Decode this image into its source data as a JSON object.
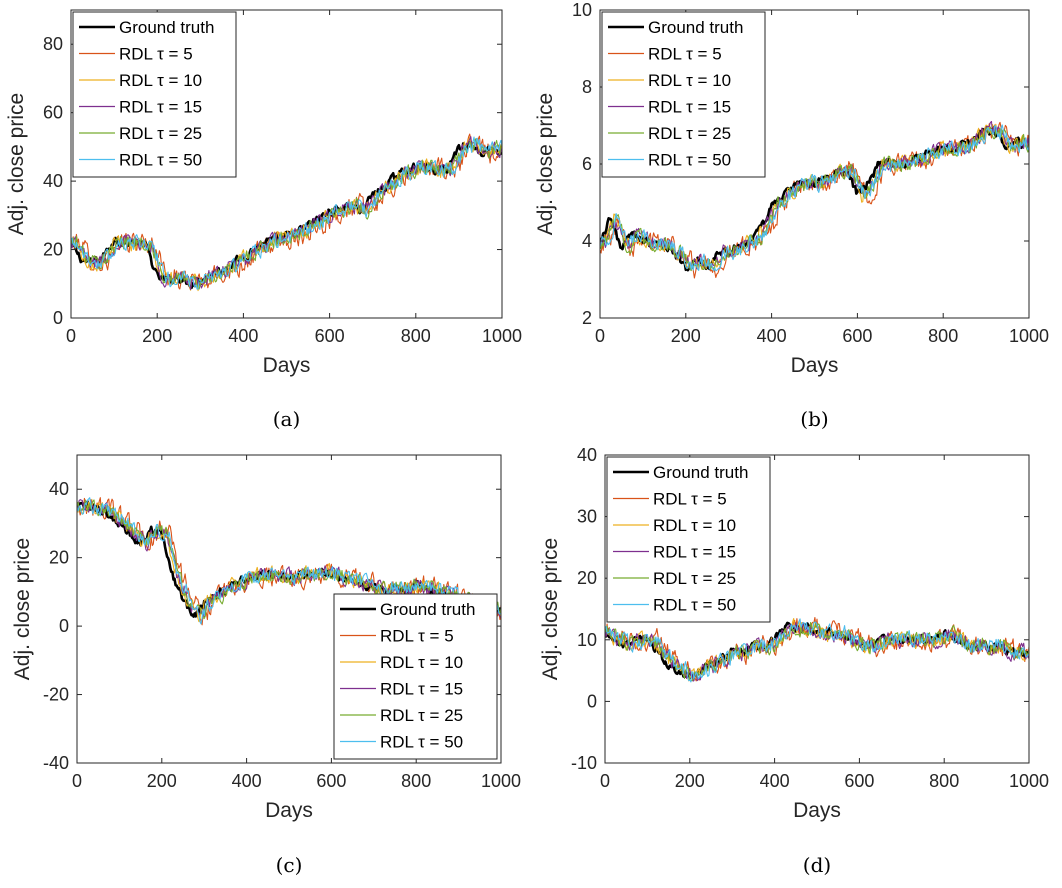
{
  "series_styles": [
    {
      "name": "Ground truth",
      "color": "#000000"
    },
    {
      "name": "RDL τ = 5",
      "color": "#d95319"
    },
    {
      "name": "RDL τ = 10",
      "color": "#edb120"
    },
    {
      "name": "RDL τ = 15",
      "color": "#7e2f8e"
    },
    {
      "name": "RDL τ = 25",
      "color": "#77ac30"
    },
    {
      "name": "RDL τ = 50",
      "color": "#4dbeee"
    }
  ],
  "chart_data": [
    {
      "type": "line",
      "caption": "(a)",
      "xlabel": "Days",
      "ylabel": "Adj. close price",
      "xlim": [
        0,
        1000
      ],
      "ylim": [
        0,
        90
      ],
      "xticks": [
        0,
        200,
        400,
        600,
        800,
        1000
      ],
      "yticks": [
        0,
        20,
        40,
        60,
        80
      ],
      "legend": "top-left",
      "series": [
        {
          "name": "Ground truth",
          "x": [
            0,
            25,
            50,
            75,
            100,
            125,
            150,
            175,
            200,
            225,
            250,
            275,
            300,
            325,
            350,
            375,
            400,
            425,
            450,
            475,
            500,
            525,
            550,
            575,
            600,
            625,
            650,
            675,
            700,
            725,
            750,
            775,
            800,
            825,
            850,
            875,
            900,
            925,
            950,
            975,
            1000
          ],
          "values": [
            22,
            17,
            16,
            18,
            23,
            22,
            22,
            21,
            12,
            11,
            12,
            10,
            11,
            13,
            14,
            16,
            18,
            20,
            22,
            23,
            24,
            25,
            27,
            29,
            31,
            32,
            33,
            31,
            36,
            38,
            41,
            43,
            44,
            44,
            43,
            44,
            50,
            51,
            48,
            50,
            48
          ]
        }
      ]
    },
    {
      "type": "line",
      "caption": "(b)",
      "xlabel": "Days",
      "ylabel": "Adj. close price",
      "xlim": [
        0,
        1000
      ],
      "ylim": [
        2,
        10
      ],
      "xticks": [
        0,
        200,
        400,
        600,
        800,
        1000
      ],
      "yticks": [
        2,
        4,
        6,
        8,
        10
      ],
      "legend": "top-left",
      "series": [
        {
          "name": "Ground truth",
          "x": [
            0,
            25,
            50,
            75,
            100,
            125,
            150,
            175,
            200,
            225,
            250,
            275,
            300,
            325,
            350,
            375,
            400,
            425,
            450,
            475,
            500,
            525,
            550,
            575,
            600,
            625,
            650,
            675,
            700,
            725,
            750,
            775,
            800,
            825,
            850,
            875,
            900,
            925,
            950,
            975,
            1000
          ],
          "values": [
            4.0,
            4.6,
            3.8,
            4.2,
            4.0,
            3.9,
            3.9,
            3.7,
            3.3,
            3.5,
            3.3,
            3.7,
            3.7,
            3.9,
            4.0,
            4.3,
            4.9,
            5.2,
            5.4,
            5.5,
            5.5,
            5.6,
            5.8,
            5.8,
            5.2,
            5.5,
            6.0,
            6.0,
            6.0,
            6.1,
            6.2,
            6.3,
            6.4,
            6.4,
            6.5,
            6.7,
            6.9,
            6.8,
            6.4,
            6.6,
            6.4
          ]
        }
      ]
    },
    {
      "type": "line",
      "caption": "(c)",
      "xlabel": "Days",
      "ylabel": "Adj. close price",
      "xlim": [
        0,
        1000
      ],
      "ylim": [
        -40,
        50
      ],
      "xticks": [
        0,
        200,
        400,
        600,
        800,
        1000
      ],
      "yticks": [
        -40,
        -20,
        0,
        20,
        40
      ],
      "legend": "bottom-right",
      "series": [
        {
          "name": "Ground truth",
          "x": [
            0,
            25,
            50,
            75,
            100,
            125,
            150,
            175,
            200,
            225,
            250,
            275,
            300,
            325,
            350,
            375,
            400,
            425,
            450,
            475,
            500,
            525,
            550,
            575,
            600,
            625,
            650,
            675,
            700,
            725,
            750,
            775,
            800,
            825,
            850,
            875,
            900,
            925,
            950,
            975,
            1000
          ],
          "values": [
            35,
            35,
            34,
            33,
            30,
            27,
            24,
            28,
            27,
            15,
            8,
            3,
            7,
            9,
            11,
            13,
            14,
            15,
            15,
            15,
            14,
            15,
            15,
            16,
            15,
            14,
            13,
            12,
            11,
            11,
            11,
            11,
            12,
            11,
            10,
            9,
            8,
            7,
            6,
            5,
            4
          ]
        }
      ]
    },
    {
      "type": "line",
      "caption": "(d)",
      "xlabel": "Days",
      "ylabel": "Adj. close price",
      "xlim": [
        0,
        1000
      ],
      "ylim": [
        -10,
        40
      ],
      "xticks": [
        0,
        200,
        400,
        600,
        800,
        1000
      ],
      "yticks": [
        -10,
        0,
        10,
        20,
        30,
        40
      ],
      "legend": "top-left",
      "series": [
        {
          "name": "Ground truth",
          "x": [
            0,
            25,
            50,
            75,
            100,
            125,
            150,
            175,
            200,
            225,
            250,
            275,
            300,
            325,
            350,
            375,
            400,
            425,
            450,
            475,
            500,
            525,
            550,
            575,
            600,
            625,
            650,
            675,
            700,
            725,
            750,
            775,
            800,
            825,
            850,
            875,
            900,
            925,
            950,
            975,
            1000
          ],
          "values": [
            11,
            10,
            9,
            10,
            10,
            8,
            6,
            5,
            4,
            5,
            6,
            7,
            8,
            8,
            9,
            9,
            10,
            12,
            12,
            12,
            11,
            11,
            11,
            10,
            9,
            9,
            10,
            10,
            10,
            10,
            10,
            10,
            11,
            10,
            9,
            9,
            9,
            9,
            8,
            8,
            8
          ]
        }
      ]
    }
  ]
}
